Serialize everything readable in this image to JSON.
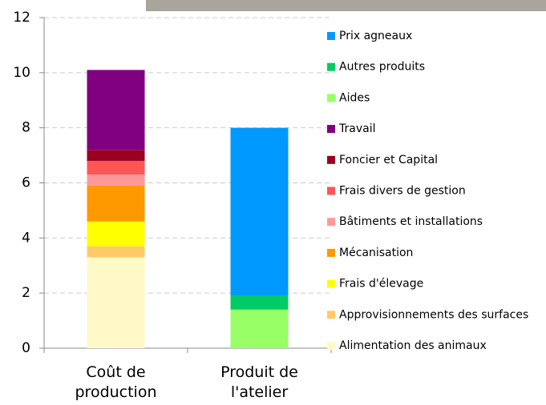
{
  "chart_data": {
    "type": "bar",
    "stacked": true,
    "categories": [
      "Coût de production",
      "Produit de l'atelier"
    ],
    "series": [
      {
        "name": "Alimentation des animaux",
        "color": "#fff9c8",
        "values": [
          3.3,
          null
        ]
      },
      {
        "name": "Approvisionnements des surfaces",
        "color": "#ffc966",
        "values": [
          0.4,
          null
        ]
      },
      {
        "name": "Frais d'élevage",
        "color": "#ffff00",
        "values": [
          0.9,
          null
        ]
      },
      {
        "name": "Mécanisation",
        "color": "#ff9900",
        "values": [
          1.3,
          null
        ]
      },
      {
        "name": "Bâtiments et installations",
        "color": "#ff9999",
        "values": [
          0.4,
          null
        ]
      },
      {
        "name": "Frais divers de gestion",
        "color": "#ff5555",
        "values": [
          0.5,
          null
        ]
      },
      {
        "name": "Foncier et Capital",
        "color": "#990022",
        "values": [
          0.4,
          null
        ]
      },
      {
        "name": "Travail",
        "color": "#800080",
        "values": [
          2.9,
          null
        ]
      },
      {
        "name": "Aides",
        "color": "#99ff66",
        "values": [
          null,
          1.4
        ]
      },
      {
        "name": "Autres produits",
        "color": "#00cc66",
        "values": [
          null,
          0.5
        ]
      },
      {
        "name": "Prix agneaux",
        "color": "#0099ff",
        "values": [
          null,
          6.1
        ]
      }
    ],
    "ylim": [
      0,
      12
    ],
    "yticks": [
      0,
      2,
      4,
      6,
      8,
      10,
      12
    ],
    "grid": true,
    "legend": "right"
  }
}
